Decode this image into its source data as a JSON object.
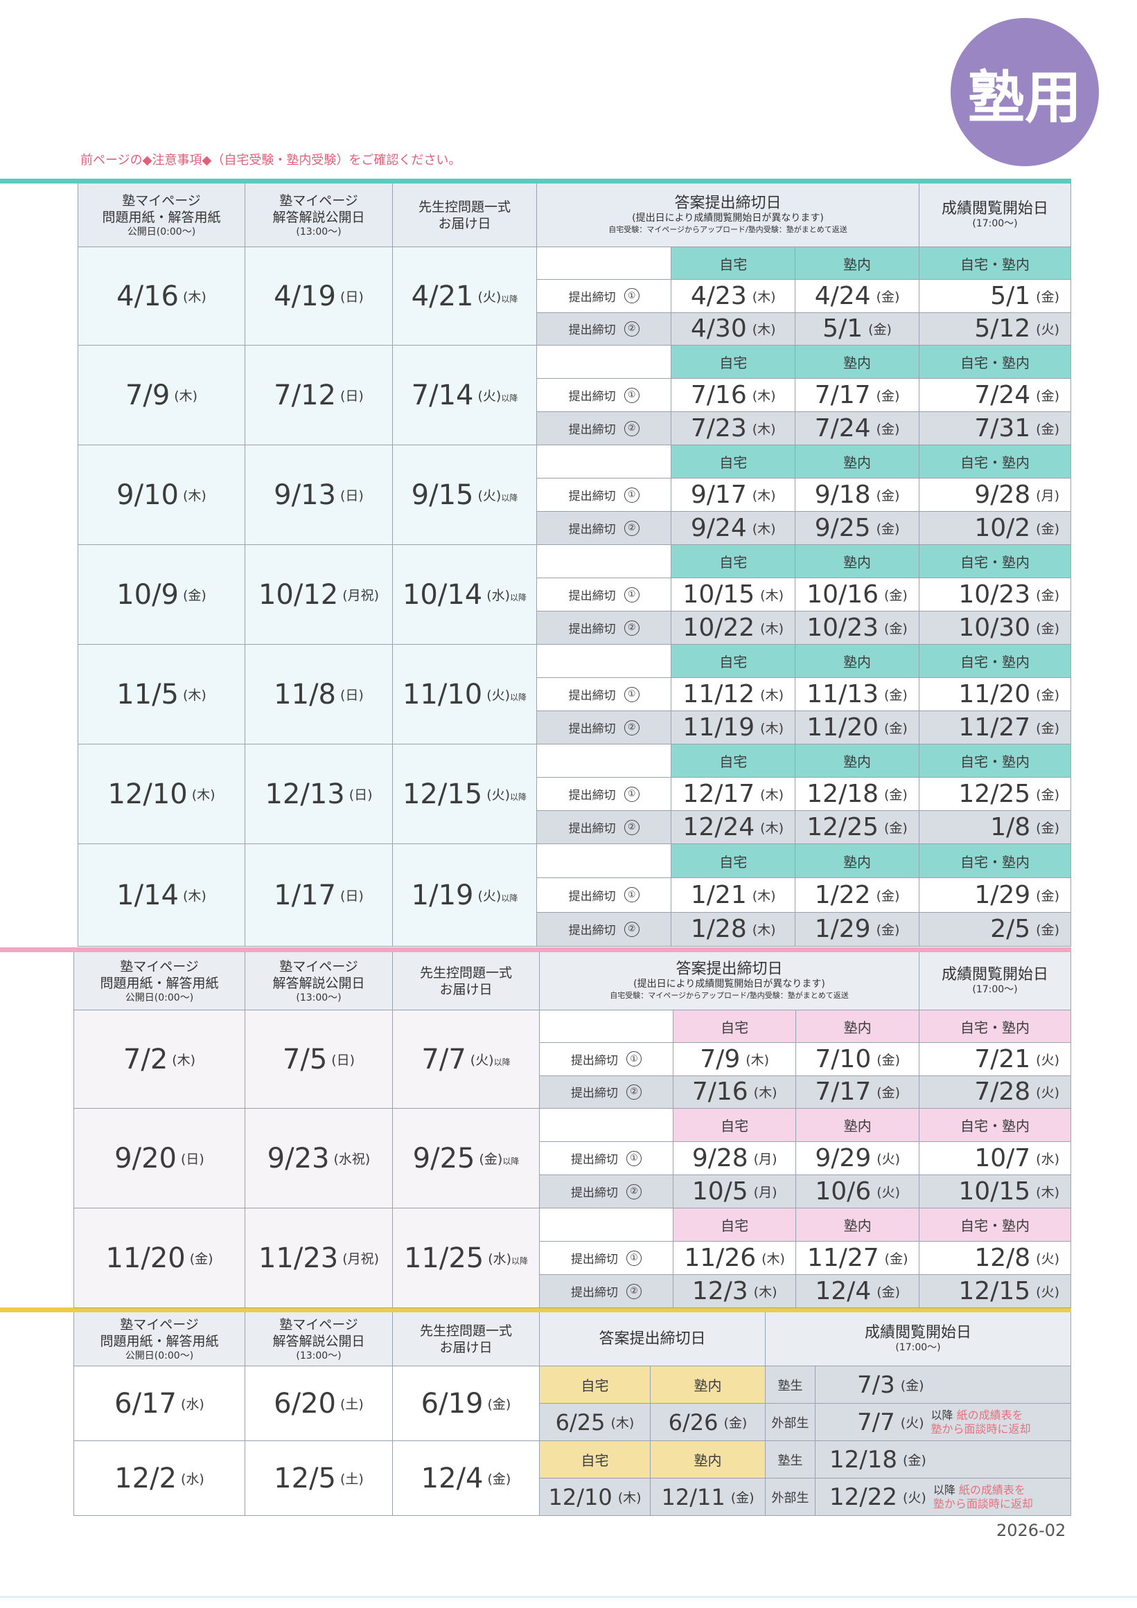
{
  "badge": "塾用",
  "note": "前ページの◆注意事項◆（自宅受験・塾内受験）をご確認ください。",
  "footer": "2026-02",
  "colors": {
    "teal": "#8ed8d2",
    "pink": "#f6d5e8",
    "yellow": "#f5e2a2",
    "green_bg": "#eef7f9",
    "pink_bg": "#f7f4f8",
    "grey": "#d8dde4"
  },
  "header": {
    "c1": [
      "塾マイページ",
      "問題用紙・解答用紙",
      "公開日(0:00〜)"
    ],
    "c2": [
      "塾マイページ",
      "解答解説公開日",
      "(13:00〜)"
    ],
    "c3": [
      "先生控問題一式",
      "お届け日"
    ],
    "c4_title": "答案提出締切日",
    "c4_sub1": "(提出日により成績閲覧開始日が異なります)",
    "c4_sub2": "自宅受験：マイページからアップロード/塾内受験：塾がまとめて返送",
    "c5": [
      "成績閲覧開始日",
      "(17:00〜)"
    ],
    "c4_title_short": "答案提出締切日"
  },
  "labels": {
    "home": "自宅",
    "juku": "塾内",
    "both": "自宅・塾内",
    "deadline": "提出締切",
    "n1": "①",
    "n2": "②",
    "ikou": "以降",
    "jukusei": "塾生",
    "gaibusei": "外部生",
    "ikou_red1": "紙の成績表を",
    "ikou_red2": "塾から面談時に返却"
  },
  "block1": [
    {
      "a": "4/16",
      "aw": "(木)",
      "b": "4/19",
      "bw": "(日)",
      "c": "4/21",
      "cw": "(火)",
      "d1": [
        "4/23",
        "(木)",
        "4/24",
        "(金)",
        "5/1",
        "(金)"
      ],
      "d2": [
        "4/30",
        "(木)",
        "5/1",
        "(金)",
        "5/12",
        "(火)"
      ]
    },
    {
      "a": "7/9",
      "aw": "(木)",
      "b": "7/12",
      "bw": "(日)",
      "c": "7/14",
      "cw": "(火)",
      "d1": [
        "7/16",
        "(木)",
        "7/17",
        "(金)",
        "7/24",
        "(金)"
      ],
      "d2": [
        "7/23",
        "(木)",
        "7/24",
        "(金)",
        "7/31",
        "(金)"
      ]
    },
    {
      "a": "9/10",
      "aw": "(木)",
      "b": "9/13",
      "bw": "(日)",
      "c": "9/15",
      "cw": "(火)",
      "d1": [
        "9/17",
        "(木)",
        "9/18",
        "(金)",
        "9/28",
        "(月)"
      ],
      "d2": [
        "9/24",
        "(木)",
        "9/25",
        "(金)",
        "10/2",
        "(金)"
      ]
    },
    {
      "a": "10/9",
      "aw": "(金)",
      "b": "10/12",
      "bw": "(月祝)",
      "c": "10/14",
      "cw": "(水)",
      "d1": [
        "10/15",
        "(木)",
        "10/16",
        "(金)",
        "10/23",
        "(金)"
      ],
      "d2": [
        "10/22",
        "(木)",
        "10/23",
        "(金)",
        "10/30",
        "(金)"
      ]
    },
    {
      "a": "11/5",
      "aw": "(木)",
      "b": "11/8",
      "bw": "(日)",
      "c": "11/10",
      "cw": "(火)",
      "d1": [
        "11/12",
        "(木)",
        "11/13",
        "(金)",
        "11/20",
        "(金)"
      ],
      "d2": [
        "11/19",
        "(木)",
        "11/20",
        "(金)",
        "11/27",
        "(金)"
      ]
    },
    {
      "a": "12/10",
      "aw": "(木)",
      "b": "12/13",
      "bw": "(日)",
      "c": "12/15",
      "cw": "(火)",
      "d1": [
        "12/17",
        "(木)",
        "12/18",
        "(金)",
        "12/25",
        "(金)"
      ],
      "d2": [
        "12/24",
        "(木)",
        "12/25",
        "(金)",
        "1/8",
        "(金)"
      ]
    },
    {
      "a": "1/14",
      "aw": "(木)",
      "b": "1/17",
      "bw": "(日)",
      "c": "1/19",
      "cw": "(火)",
      "d1": [
        "1/21",
        "(木)",
        "1/22",
        "(金)",
        "1/29",
        "(金)"
      ],
      "d2": [
        "1/28",
        "(木)",
        "1/29",
        "(金)",
        "2/5",
        "(金)"
      ]
    }
  ],
  "block2": [
    {
      "a": "7/2",
      "aw": "(木)",
      "b": "7/5",
      "bw": "(日)",
      "c": "7/7",
      "cw": "(火)",
      "d1": [
        "7/9",
        "(木)",
        "7/10",
        "(金)",
        "7/21",
        "(火)"
      ],
      "d2": [
        "7/16",
        "(木)",
        "7/17",
        "(金)",
        "7/28",
        "(火)"
      ]
    },
    {
      "a": "9/20",
      "aw": "(日)",
      "b": "9/23",
      "bw": "(水祝)",
      "c": "9/25",
      "cw": "(金)",
      "d1": [
        "9/28",
        "(月)",
        "9/29",
        "(火)",
        "10/7",
        "(水)"
      ],
      "d2": [
        "10/5",
        "(月)",
        "10/6",
        "(火)",
        "10/15",
        "(木)"
      ]
    },
    {
      "a": "11/20",
      "aw": "(金)",
      "b": "11/23",
      "bw": "(月祝)",
      "c": "11/25",
      "cw": "(水)",
      "d1": [
        "11/26",
        "(木)",
        "11/27",
        "(金)",
        "12/8",
        "(火)"
      ],
      "d2": [
        "12/3",
        "(木)",
        "12/4",
        "(金)",
        "12/15",
        "(火)"
      ]
    }
  ],
  "block3": [
    {
      "a": "6/17",
      "aw": "(水)",
      "b": "6/20",
      "bw": "(土)",
      "c": "6/19",
      "cw": "(金)",
      "home": "6/25",
      "homew": "(木)",
      "juku": "6/26",
      "jukuw": "(金)",
      "js": "7/3",
      "jsw": "(金)",
      "gs": "7/7",
      "gsw": "(火)"
    },
    {
      "a": "12/2",
      "aw": "(水)",
      "b": "12/5",
      "bw": "(土)",
      "c": "12/4",
      "cw": "(金)",
      "home": "12/10",
      "homew": "(木)",
      "juku": "12/11",
      "jukuw": "(金)",
      "js": "12/18",
      "jsw": "(金)",
      "gs": "12/22",
      "gsw": "(火)"
    }
  ]
}
